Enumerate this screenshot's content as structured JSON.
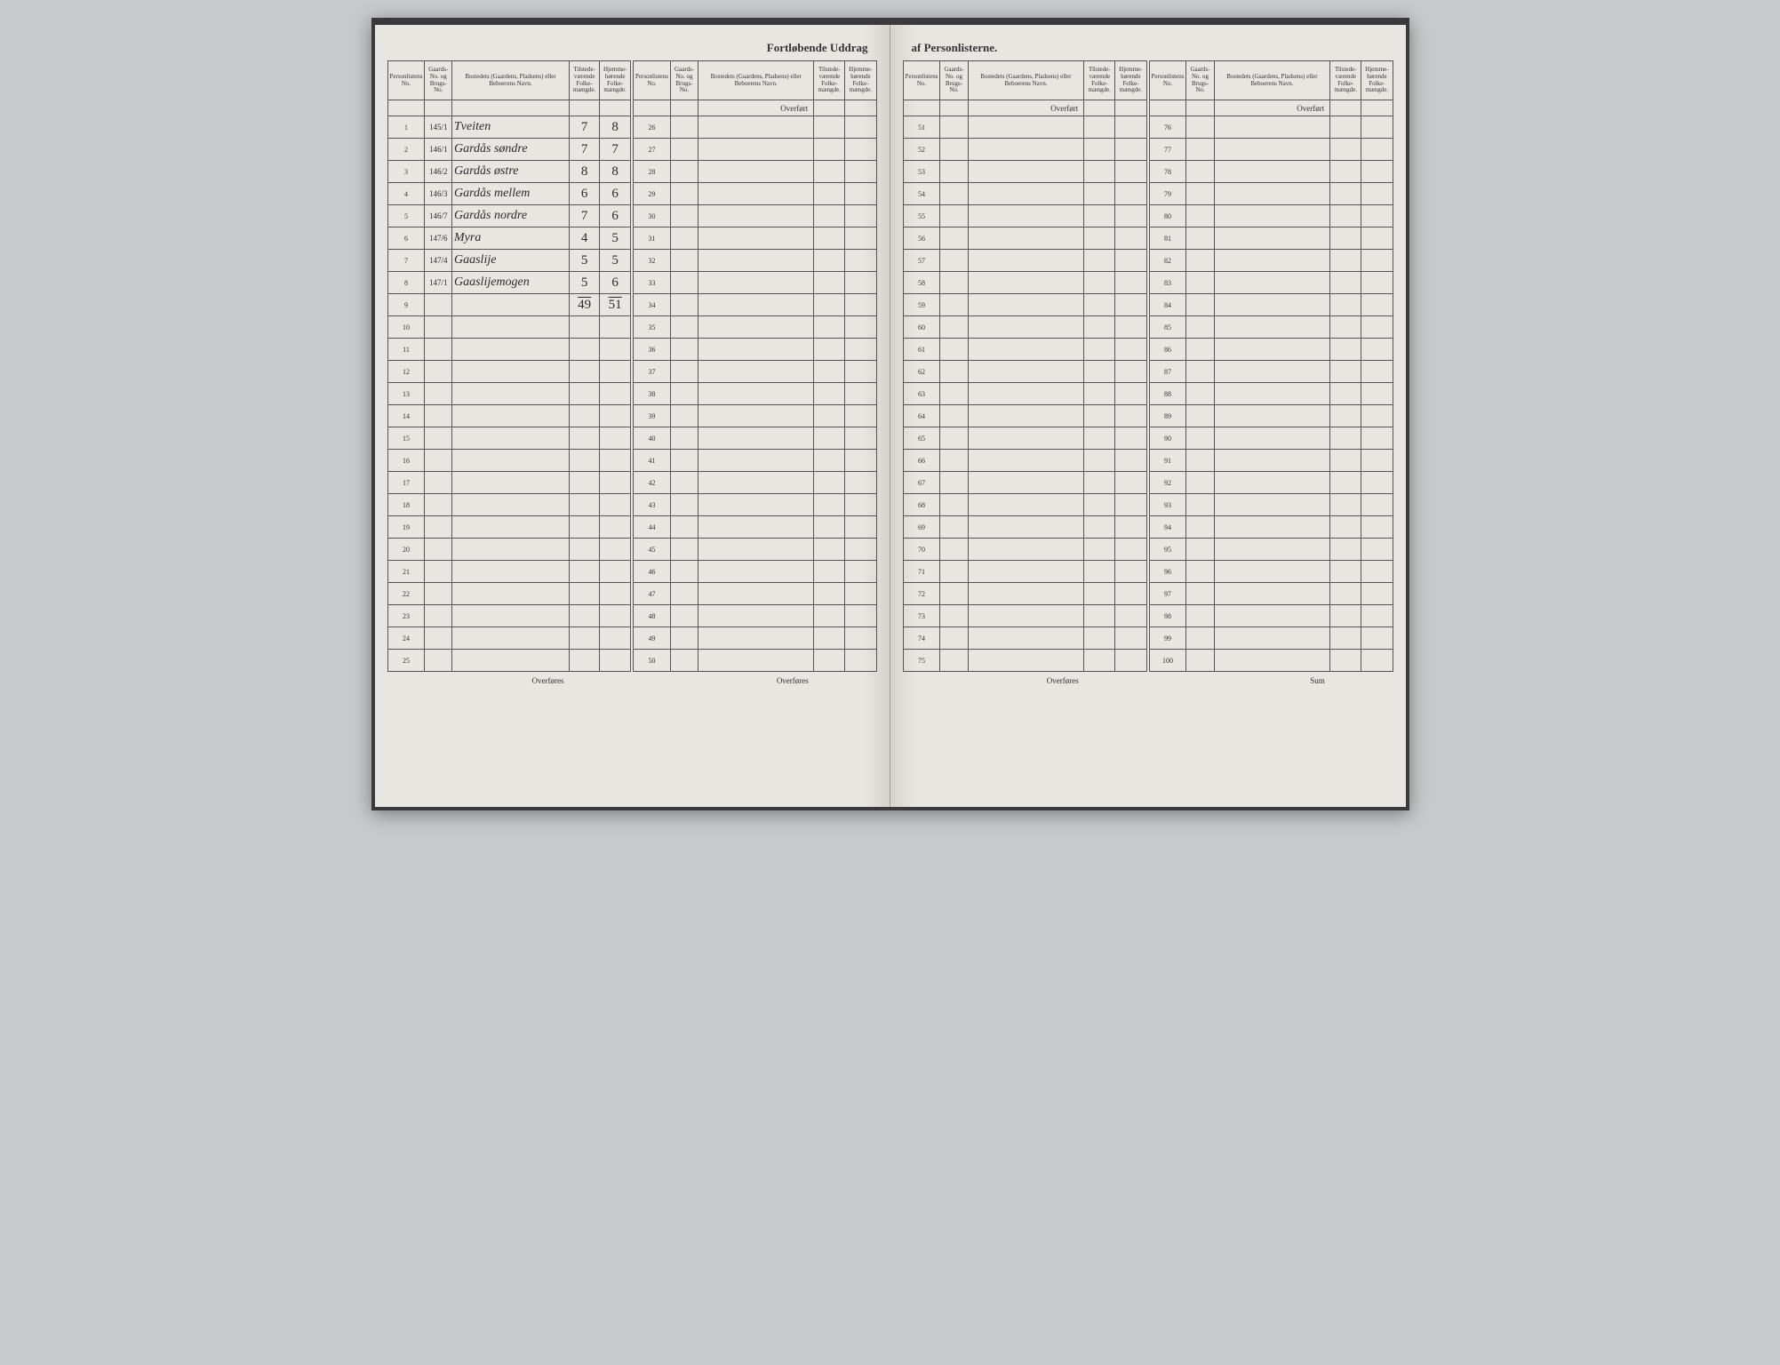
{
  "title_left": "Fortløbende Uddrag",
  "title_right": "af Personlisterne.",
  "headers": {
    "no": "Personlistens No.",
    "gaard": "Gaards-No. og Brugs-No.",
    "name": "Bostedets (Gaardens, Pladsens) eller Beboerens Navn.",
    "tils": "Tilstede-værende Folke-mængde.",
    "hjem": "Hjemme-hørende Folke-mængde."
  },
  "overfort": "Overført",
  "overfores": "Overføres",
  "sum": "Sum",
  "entries": [
    {
      "no": 1,
      "gaard": "145/1",
      "name": "Tveiten",
      "tils": "7",
      "hjem": "8"
    },
    {
      "no": 2,
      "gaard": "146/1",
      "name": "Gardås søndre",
      "tils": "7",
      "hjem": "7"
    },
    {
      "no": 3,
      "gaard": "146/2",
      "name": "Gardås østre",
      "tils": "8",
      "hjem": "8"
    },
    {
      "no": 4,
      "gaard": "146/3",
      "name": "Gardås mellem",
      "tils": "6",
      "hjem": "6"
    },
    {
      "no": 5,
      "gaard": "146/7",
      "name": "Gardås nordre",
      "tils": "7",
      "hjem": "6"
    },
    {
      "no": 6,
      "gaard": "147/6",
      "name": "Myra",
      "tils": "4",
      "hjem": "5"
    },
    {
      "no": 7,
      "gaard": "147/4",
      "name": "Gaaslije",
      "tils": "5",
      "hjem": "5"
    },
    {
      "no": 8,
      "gaard": "147/1",
      "name": "Gaaslijemogen",
      "tils": "5",
      "hjem": "6"
    }
  ],
  "totals": {
    "tils": "49",
    "hjem": "51"
  },
  "blocks": {
    "b1": {
      "start": 1,
      "end": 25
    },
    "b2": {
      "start": 26,
      "end": 50
    },
    "b3": {
      "start": 51,
      "end": 75
    },
    "b4": {
      "start": 76,
      "end": 100
    }
  }
}
